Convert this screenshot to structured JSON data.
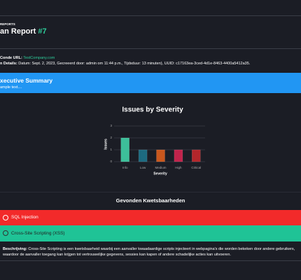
{
  "header": {
    "section": "REPORTS",
    "title": "an Report",
    "number": "#7"
  },
  "details": {
    "url_label": "Conde URL:",
    "url": "TestCompany.com",
    "info_label": "n Details:",
    "info": "Datum: Sept. 2, 2023, Gecreeerd door: admin om 11:44 p.m., Tijdsduur: 13 minuten), UUID: c17163ea-3ced-4d1e-8463-4400a5412a35."
  },
  "summary": {
    "title": "xecutive Summary",
    "text": "ample text...."
  },
  "chart_data": {
    "type": "bar",
    "title": "Issues by Severity",
    "x_label": "Severity",
    "y_label": "Issues",
    "categories": [
      "Info",
      "Low",
      "Medium",
      "High",
      "Critical"
    ],
    "values": [
      2,
      1,
      1,
      1,
      1
    ],
    "colors": [
      "#3dbf9a",
      "#1d6a80",
      "#c9571d",
      "#c1234b",
      "#b3262b"
    ],
    "ylim": [
      0,
      3
    ],
    "yticks": [
      0,
      1,
      2,
      3
    ],
    "grid": true
  },
  "findings": {
    "title": "Gevonden Kwetsbaarheden",
    "items": [
      {
        "name": "SQL Injection"
      },
      {
        "name": "Cross-Site Scripting (XSS)"
      }
    ],
    "description_label": "Beschrijving:",
    "description": "Cross-Site Scripting is een kwetsbaarheid waarbij een aanvaller kwaadaardige scripts injecteert in webpagina's die worden bekeken door andere gebruikers, waardoor de aanvaller toegang kan krijgen tot vertrouwelijke gegevens, sessies kan kapen of andere schadelijke acties kan uitvoeren."
  }
}
